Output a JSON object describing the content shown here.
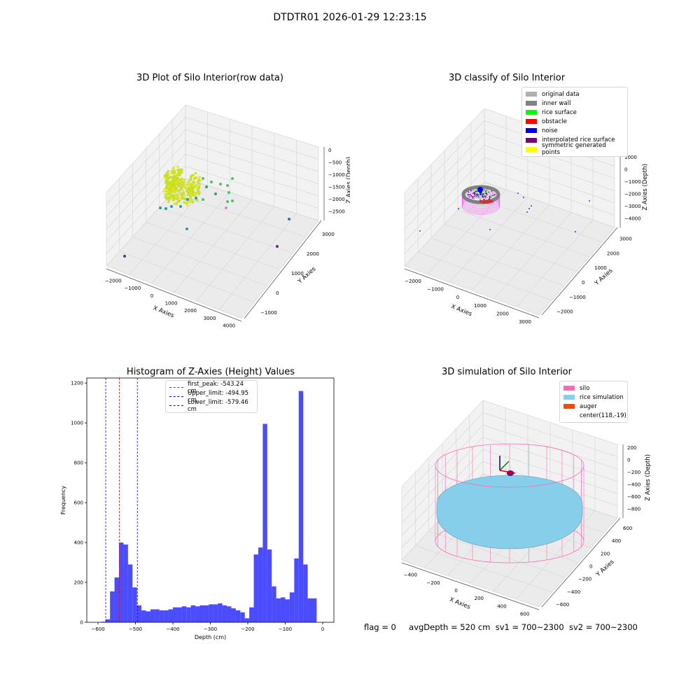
{
  "figure": {
    "suptitle": "DTDTR01 2026-01-29 12:23:15",
    "status": {
      "flag": "flag = 0",
      "avg_depth": "avgDepth = 520 cm",
      "sv1": "sv1 = 700~2300",
      "sv2": "sv2 = 700~2300"
    }
  },
  "panels": {
    "raw": {
      "title": "3D Plot of Silo Interior(row data)",
      "xlabel": "X Axies",
      "ylabel": "Y Axies",
      "zlabel": "Z Axies (Depth)",
      "xticks": [
        "−2000",
        "−1000",
        "0",
        "1000",
        "2000",
        "3000",
        "4000"
      ],
      "yticks": [
        "−1000",
        "0",
        "1000",
        "2000",
        "3000"
      ],
      "zticks": [
        "0",
        "−500",
        "−1000",
        "−1500",
        "−2000",
        "−2500"
      ],
      "colors": {
        "surface": "#c7e020",
        "teal": "#2a9d8f",
        "green": "#4cc26c",
        "blue": "#2e6fa8",
        "purple": "#6a2a8a",
        "pink": "#d08cc6"
      }
    },
    "classify": {
      "title": "3D classify of Silo Interior",
      "xlabel": "X Axies",
      "ylabel": "Y Axies",
      "zlabel": "Z Axies (Depth)",
      "xticks": [
        "−2000",
        "−1000",
        "0",
        "1000",
        "2000",
        "3000"
      ],
      "yticks": [
        "−2000",
        "−1000",
        "0",
        "1000",
        "2000",
        "3000"
      ],
      "zticks": [
        "1000",
        "0",
        "−1000",
        "−2000",
        "−3000",
        "−4000"
      ],
      "legend": [
        {
          "label": "original data",
          "color": "#b0b0b0"
        },
        {
          "label": "inner wall",
          "color": "#808080"
        },
        {
          "label": "rice surface",
          "color": "#00ff00"
        },
        {
          "label": "obstacle",
          "color": "#ff0000"
        },
        {
          "label": "noise",
          "color": "#0000ff"
        },
        {
          "label": "interpolated rice surface",
          "color": "#800080"
        },
        {
          "label": "symmetric generated points",
          "color": "#ffff00"
        }
      ]
    },
    "simulation": {
      "title": "3D simulation of Silo Interior",
      "xlabel": "X Axies",
      "ylabel": "Y Axies",
      "zlabel": "Z Axies (Depth)",
      "xticks": [
        "−400",
        "−200",
        "0",
        "200",
        "400",
        "600"
      ],
      "yticks": [
        "−600",
        "−400",
        "−200",
        "0",
        "200",
        "400",
        "600"
      ],
      "zticks": [
        "200",
        "0",
        "−200",
        "−400",
        "−600",
        "−800"
      ],
      "legend": [
        {
          "label": "silo",
          "color": "#ff69b4"
        },
        {
          "label": "rice simulation",
          "color": "#87ceeb"
        },
        {
          "label": "auger",
          "color": "#ff4500"
        },
        {
          "label": "center(118,-19)",
          "color": ""
        }
      ]
    }
  },
  "chart_data": {
    "type": "bar",
    "title": "Histogram of Z-Axies (Height) Values",
    "xlabel": "Depth (cm)",
    "ylabel": "Frequency",
    "xlim": [
      -630,
      30
    ],
    "ylim": [
      0,
      1225
    ],
    "xticks": [
      -600,
      -500,
      -400,
      -300,
      -200,
      -100,
      0
    ],
    "yticks": [
      0,
      200,
      400,
      600,
      800,
      1000,
      1200
    ],
    "bar_color": "#0000ff",
    "bin_width": 12,
    "bin_starts": [
      -592,
      -580,
      -568,
      -556,
      -544,
      -532,
      -520,
      -508,
      -496,
      -484,
      -472,
      -460,
      -448,
      -436,
      -424,
      -412,
      -400,
      -388,
      -376,
      -364,
      -352,
      -340,
      -328,
      -316,
      -304,
      -292,
      -280,
      -268,
      -256,
      -244,
      -232,
      -220,
      -208,
      -196,
      -184,
      -172,
      -160,
      -148,
      -136,
      -124,
      -112,
      -100,
      -88,
      -76,
      -64,
      -52,
      -40,
      -28,
      -16,
      -4
    ],
    "values": [
      3,
      15,
      155,
      225,
      400,
      390,
      290,
      175,
      85,
      60,
      55,
      65,
      65,
      60,
      60,
      65,
      75,
      75,
      80,
      75,
      85,
      80,
      85,
      85,
      90,
      90,
      95,
      85,
      80,
      70,
      60,
      50,
      20,
      75,
      340,
      375,
      995,
      365,
      180,
      120,
      125,
      115,
      150,
      320,
      1160,
      290,
      120,
      120,
      0,
      0
    ],
    "lines": [
      {
        "label": "first_peak: -543.24 cm",
        "x": -543.24,
        "color": "#ff0000"
      },
      {
        "label": "Upper_limit: -494.95 cm",
        "x": -494.95,
        "color": "#0000ff"
      },
      {
        "label": "Lower_limit: -579.46 cm",
        "x": -579.46,
        "color": "#0000ff"
      }
    ]
  }
}
